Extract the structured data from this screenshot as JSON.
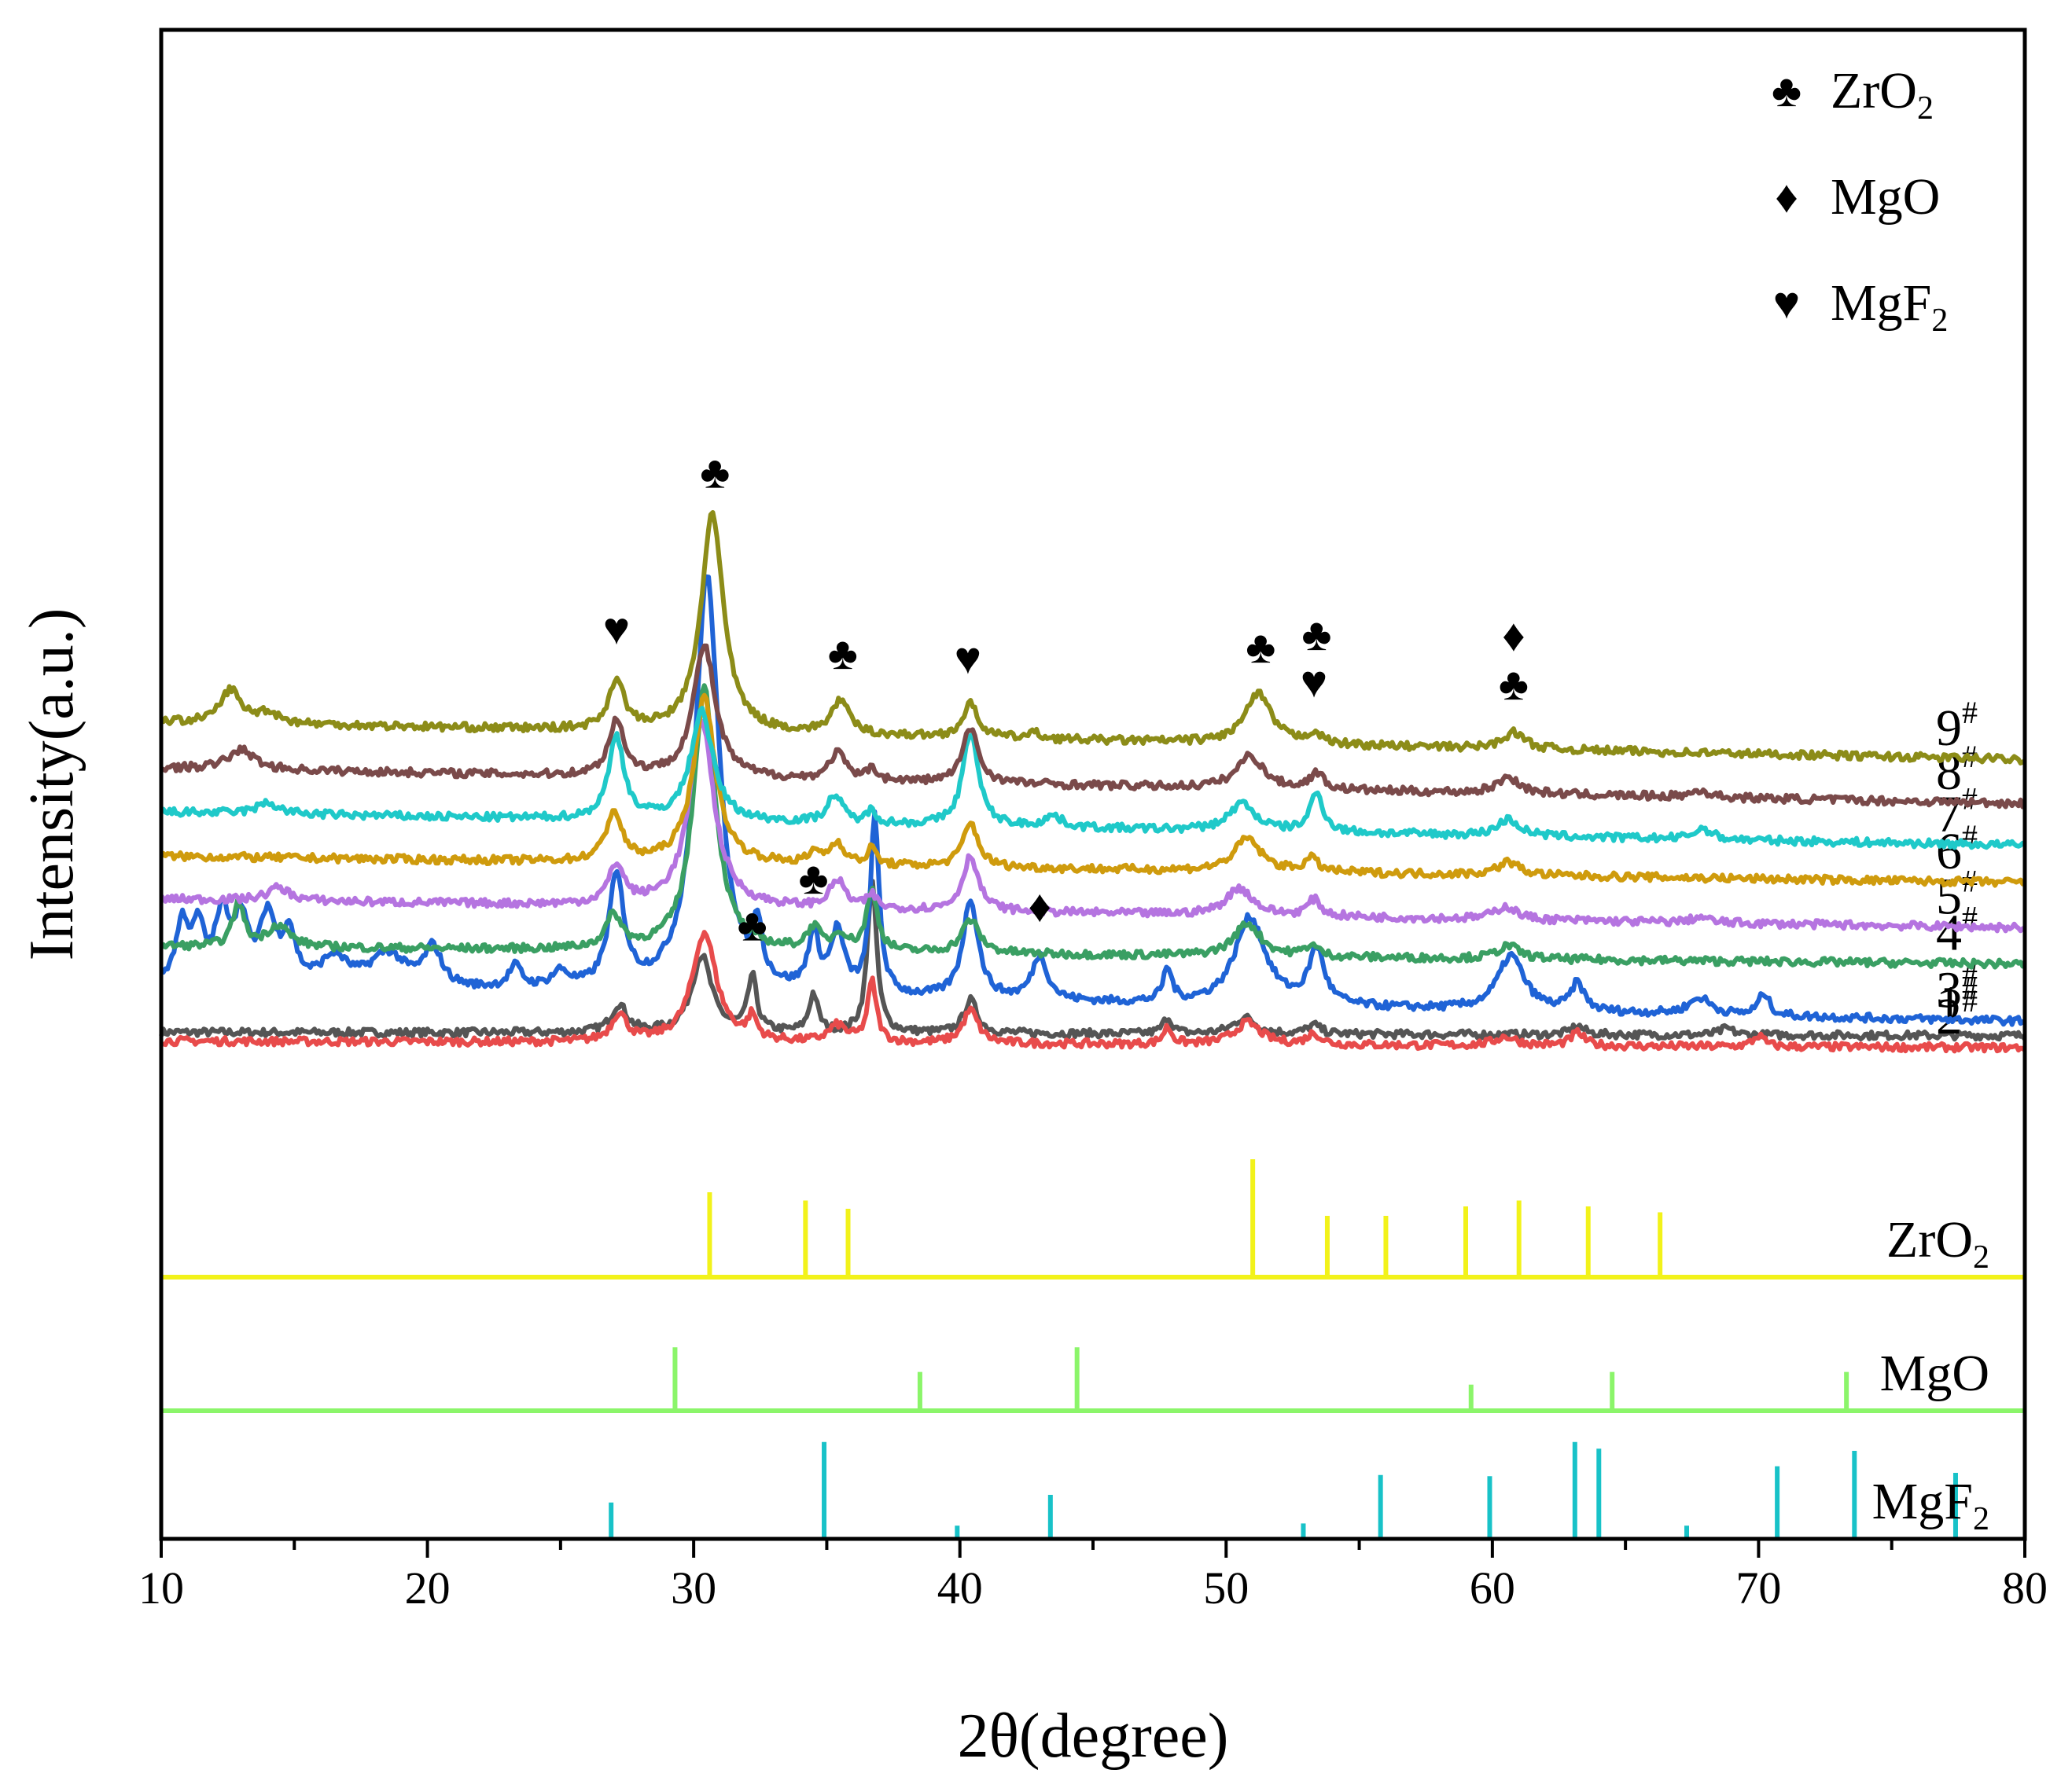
{
  "chart_data": {
    "type": "line",
    "title": "",
    "xlabel": "2θ(degree)",
    "ylabel": "Intensity(a.u.)",
    "xlim": [
      10,
      80
    ],
    "xticks": [
      10,
      20,
      30,
      40,
      50,
      60,
      70,
      80
    ],
    "y_ticks_shown": false,
    "symbols": {
      "ZrO2": "♣",
      "MgO": "♦",
      "MgF2": "♥"
    },
    "legend": {
      "position": "top-right",
      "entries": [
        {
          "symbol": "♣",
          "label": "ZrO",
          "sub": "2"
        },
        {
          "symbol": "♦",
          "label": "MgO",
          "sub": ""
        },
        {
          "symbol": "♥",
          "label": "MgF",
          "sub": "2"
        }
      ]
    },
    "series": [
      {
        "name": "1",
        "sup": "#",
        "color": "#555555",
        "start_level": 0.94,
        "end_level": 0.91,
        "peaks": [
          [
            27.2,
            0.25,
            0.35
          ],
          [
            30.3,
            0.7,
            0.45
          ],
          [
            32.2,
            0.5,
            0.2
          ],
          [
            34.5,
            0.35,
            0.2
          ],
          [
            36.7,
            1.4,
            0.2
          ],
          [
            40.4,
            0.3,
            0.3
          ],
          [
            47.8,
            0.15,
            0.2
          ],
          [
            50.7,
            0.15,
            0.5
          ],
          [
            53.3,
            0.08,
            0.3
          ],
          [
            63.2,
            0.08,
            0.3
          ],
          [
            68.8,
            0.06,
            0.3
          ]
        ]
      },
      {
        "name": "2",
        "sup": "#",
        "color": "#e84b4b",
        "start_level": 0.86,
        "end_level": 0.8,
        "peaks": [
          [
            27.2,
            0.25,
            0.35
          ],
          [
            30.4,
            1.0,
            0.55
          ],
          [
            32.2,
            0.2,
            0.2
          ],
          [
            35.4,
            0.15,
            0.4
          ],
          [
            36.7,
            0.55,
            0.2
          ],
          [
            40.4,
            0.3,
            0.35
          ],
          [
            47.8,
            0.15,
            0.2
          ],
          [
            50.8,
            0.2,
            0.6
          ],
          [
            53.3,
            0.1,
            0.3
          ],
          [
            60.5,
            0.08,
            0.5
          ],
          [
            63.2,
            0.12,
            0.3
          ],
          [
            70.0,
            0.1,
            0.25
          ]
        ]
      },
      {
        "name": "3",
        "sup": "#",
        "color": "#1f63d6",
        "start_level": 1.36,
        "end_level": 1.04,
        "peaks": [
          [
            10.8,
            0.55,
            0.3
          ],
          [
            11.4,
            0.45,
            0.25
          ],
          [
            12.3,
            0.6,
            0.35
          ],
          [
            13.0,
            0.55,
            0.3
          ],
          [
            14.0,
            0.6,
            0.35
          ],
          [
            14.8,
            0.45,
            0.3
          ],
          [
            16.5,
            0.25,
            0.6
          ],
          [
            18.5,
            0.3,
            0.8
          ],
          [
            20.2,
            0.35,
            0.4
          ],
          [
            23.3,
            0.2,
            0.3
          ],
          [
            25.0,
            0.15,
            0.4
          ],
          [
            27.1,
            1.0,
            0.35
          ],
          [
            30.5,
            3.8,
            0.55
          ],
          [
            32.4,
            0.5,
            0.2
          ],
          [
            34.5,
            0.5,
            0.25
          ],
          [
            35.4,
            0.55,
            0.3
          ],
          [
            36.8,
            1.6,
            0.2
          ],
          [
            40.4,
            0.9,
            0.35
          ],
          [
            43.0,
            0.4,
            0.35
          ],
          [
            47.8,
            0.3,
            0.2
          ],
          [
            50.9,
            0.8,
            0.7
          ],
          [
            53.4,
            0.5,
            0.35
          ],
          [
            60.7,
            0.5,
            0.6
          ],
          [
            63.2,
            0.25,
            0.3
          ],
          [
            67.8,
            0.15,
            0.5
          ],
          [
            70.2,
            0.2,
            0.25
          ]
        ]
      },
      {
        "name": "4",
        "sup": "#",
        "color": "#3a9f63",
        "start_level": 1.72,
        "end_level": 1.56,
        "peaks": [
          [
            12.9,
            0.4,
            0.25
          ],
          [
            14.4,
            0.2,
            0.5
          ],
          [
            27.0,
            0.3,
            0.35
          ],
          [
            30.4,
            2.4,
            0.5
          ],
          [
            34.5,
            0.2,
            0.3
          ],
          [
            35.5,
            0.15,
            0.3
          ],
          [
            36.7,
            0.55,
            0.25
          ],
          [
            40.4,
            0.3,
            0.4
          ],
          [
            50.8,
            0.3,
            0.6
          ],
          [
            53.2,
            0.1,
            0.3
          ],
          [
            60.6,
            0.12,
            0.5
          ]
        ]
      },
      {
        "name": "5",
        "sup": "#",
        "color": "#b574e0",
        "start_level": 2.15,
        "end_level": 1.89,
        "peaks": [
          [
            14.4,
            0.12,
            0.5
          ],
          [
            27.1,
            0.35,
            0.35
          ],
          [
            30.3,
            1.7,
            0.55
          ],
          [
            35.4,
            0.25,
            0.35
          ],
          [
            36.7,
            0.12,
            0.2
          ],
          [
            40.4,
            0.5,
            0.35
          ],
          [
            50.5,
            0.25,
            0.6
          ],
          [
            53.3,
            0.15,
            0.3
          ],
          [
            60.5,
            0.12,
            0.5
          ],
          [
            67.8,
            0.05,
            0.4
          ]
        ]
      },
      {
        "name": "6",
        "sup": "#",
        "color": "#cf9b0d",
        "start_level": 2.54,
        "end_level": 2.3,
        "peaks": [
          [
            27.0,
            0.45,
            0.35
          ],
          [
            30.4,
            1.5,
            0.5
          ],
          [
            34.6,
            0.1,
            0.3
          ],
          [
            35.4,
            0.2,
            0.3
          ],
          [
            36.7,
            0.15,
            0.2
          ],
          [
            40.4,
            0.4,
            0.35
          ],
          [
            50.8,
            0.3,
            0.6
          ],
          [
            53.2,
            0.12,
            0.3
          ],
          [
            60.6,
            0.12,
            0.5
          ]
        ]
      },
      {
        "name": "7",
        "sup": "#",
        "color": "#1fc9c9",
        "start_level": 2.94,
        "end_level": 2.64,
        "peaks": [
          [
            14.0,
            0.1,
            0.5
          ],
          [
            27.1,
            0.75,
            0.35
          ],
          [
            30.3,
            1.0,
            0.5
          ],
          [
            35.3,
            0.25,
            0.35
          ],
          [
            36.7,
            0.12,
            0.2
          ],
          [
            40.4,
            0.85,
            0.35
          ],
          [
            43.5,
            0.1,
            0.4
          ],
          [
            50.6,
            0.25,
            0.6
          ],
          [
            53.4,
            0.35,
            0.3
          ],
          [
            60.6,
            0.15,
            0.5
          ],
          [
            67.9,
            0.1,
            0.4
          ]
        ]
      },
      {
        "name": "8",
        "sup": "#",
        "color": "#7a4a4a",
        "start_level": 3.34,
        "end_level": 3.02,
        "peaks": [
          [
            13.0,
            0.18,
            0.6
          ],
          [
            27.1,
            0.5,
            0.35
          ],
          [
            30.4,
            1.2,
            0.5
          ],
          [
            35.4,
            0.25,
            0.35
          ],
          [
            36.7,
            0.12,
            0.2
          ],
          [
            40.4,
            0.5,
            0.35
          ],
          [
            50.9,
            0.3,
            0.6
          ],
          [
            53.4,
            0.15,
            0.3
          ],
          [
            60.6,
            0.15,
            0.5
          ],
          [
            67.8,
            0.06,
            0.4
          ]
        ]
      },
      {
        "name": "9",
        "sup": "#",
        "color": "#8c8c18",
        "start_level": 3.76,
        "end_level": 3.42,
        "peaks": [
          [
            12.6,
            0.3,
            0.45
          ],
          [
            14.0,
            0.1,
            0.5
          ],
          [
            27.1,
            0.45,
            0.35
          ],
          [
            30.7,
            2.0,
            0.5
          ],
          [
            35.5,
            0.3,
            0.4
          ],
          [
            40.4,
            0.3,
            0.35
          ],
          [
            42.8,
            0.05,
            0.3
          ],
          [
            51.2,
            0.45,
            0.6
          ],
          [
            53.3,
            0.1,
            0.3
          ],
          [
            60.8,
            0.15,
            0.5
          ]
        ]
      }
    ],
    "reference_patterns": [
      {
        "name": "ZrO",
        "sub": "2",
        "color": "#f2f21a",
        "lines": [
          [
            30.6,
            0.72
          ],
          [
            34.2,
            0.65
          ],
          [
            35.8,
            0.58
          ],
          [
            51.0,
            1.0
          ],
          [
            53.8,
            0.52
          ],
          [
            56.0,
            0.52
          ],
          [
            59.0,
            0.6
          ],
          [
            61.0,
            0.65
          ],
          [
            63.6,
            0.6
          ],
          [
            66.3,
            0.55
          ]
        ]
      },
      {
        "name": "MgO",
        "sub": "",
        "color": "#8bf56a",
        "lines": [
          [
            29.3,
            0.85
          ],
          [
            38.5,
            0.52
          ],
          [
            44.4,
            0.85
          ],
          [
            59.2,
            0.35
          ],
          [
            64.5,
            0.52
          ],
          [
            73.3,
            0.52
          ]
        ]
      },
      {
        "name": "MgF",
        "sub": "2",
        "color": "#18c2c8",
        "lines": [
          [
            26.9,
            0.33
          ],
          [
            34.9,
            0.88
          ],
          [
            39.9,
            0.12
          ],
          [
            43.4,
            0.4
          ],
          [
            52.9,
            0.14
          ],
          [
            55.8,
            0.58
          ],
          [
            59.9,
            0.57
          ],
          [
            63.1,
            0.88
          ],
          [
            64.0,
            0.82
          ],
          [
            67.3,
            0.12
          ],
          [
            70.7,
            0.66
          ],
          [
            73.6,
            0.8
          ],
          [
            77.4,
            0.6
          ]
        ]
      }
    ],
    "peak_markers": [
      {
        "symbol": "♥",
        "x": 27.1,
        "row": 9
      },
      {
        "symbol": "♣",
        "x": 30.8,
        "row": 9
      },
      {
        "symbol": "♣",
        "x": 35.6,
        "row": 9
      },
      {
        "symbol": "♥",
        "x": 40.3,
        "row": 9
      },
      {
        "symbol": "♣",
        "x": 51.3,
        "row": 9
      },
      {
        "symbol": "♣",
        "x": 53.4,
        "row": 9,
        "stack": 1
      },
      {
        "symbol": "♥",
        "x": 53.3,
        "row": 9
      },
      {
        "symbol": "♦",
        "x": 60.8,
        "row": 9,
        "stack": 1
      },
      {
        "symbol": "♣",
        "x": 60.8,
        "row": 9
      },
      {
        "symbol": "♣",
        "x": 34.5,
        "row": 3
      },
      {
        "symbol": "♦",
        "x": 43.0,
        "row": 3
      },
      {
        "symbol": "♣",
        "x": 32.2,
        "row": 1
      }
    ]
  }
}
